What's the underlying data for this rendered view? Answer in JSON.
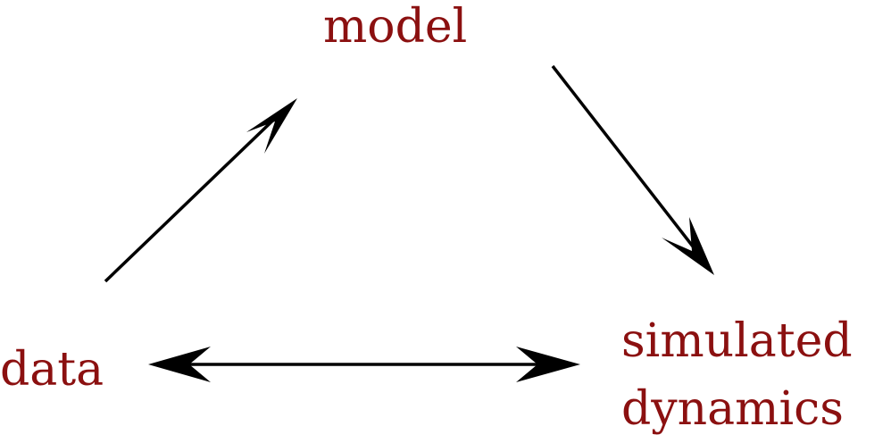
{
  "nodes": {
    "model": "model",
    "data": "data",
    "simulated_line1": "simulated",
    "simulated_line2": "dynamics"
  },
  "colors": {
    "label": "#8b1010",
    "arrow": "#000000"
  }
}
